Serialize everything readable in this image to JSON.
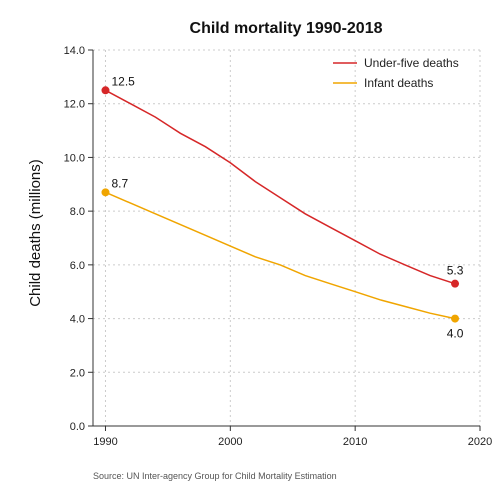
{
  "chart_data": {
    "type": "line",
    "title": "Child mortality 1990-2018",
    "xlabel": "",
    "ylabel": "Child deaths (millions)",
    "xlim": [
      1989,
      2020
    ],
    "ylim": [
      0,
      14
    ],
    "x_ticks": [
      1990,
      2000,
      2010,
      2020
    ],
    "y_ticks": [
      "0.0",
      "2.0",
      "4.0",
      "6.0",
      "8.0",
      "10.0",
      "12.0",
      "14.0"
    ],
    "grid": true,
    "legend_position": "top-right",
    "series": [
      {
        "name": "Under-five deaths",
        "color": "#d62728",
        "x": [
          1990,
          1992,
          1994,
          1996,
          1998,
          2000,
          2002,
          2004,
          2006,
          2008,
          2010,
          2012,
          2014,
          2016,
          2018
        ],
        "values": [
          12.5,
          12.0,
          11.5,
          10.9,
          10.4,
          9.8,
          9.1,
          8.5,
          7.9,
          7.4,
          6.9,
          6.4,
          6.0,
          5.6,
          5.3
        ],
        "labels": [
          {
            "x": 1990,
            "y": 12.5,
            "text": "12.5",
            "pos": "right-above"
          },
          {
            "x": 2018,
            "y": 5.3,
            "text": "5.3",
            "pos": "above"
          }
        ]
      },
      {
        "name": "Infant deaths",
        "color": "#f0a500",
        "x": [
          1990,
          1992,
          1994,
          1996,
          1998,
          2000,
          2002,
          2004,
          2006,
          2008,
          2010,
          2012,
          2014,
          2016,
          2018
        ],
        "values": [
          8.7,
          8.3,
          7.9,
          7.5,
          7.1,
          6.7,
          6.3,
          6.0,
          5.6,
          5.3,
          5.0,
          4.7,
          4.45,
          4.2,
          4.0
        ],
        "labels": [
          {
            "x": 1990,
            "y": 8.7,
            "text": "8.7",
            "pos": "right-above"
          },
          {
            "x": 2018,
            "y": 4.0,
            "text": "4.0",
            "pos": "below"
          }
        ]
      }
    ],
    "source": "Source: UN Inter-agency Group for Child Mortality Estimation"
  }
}
